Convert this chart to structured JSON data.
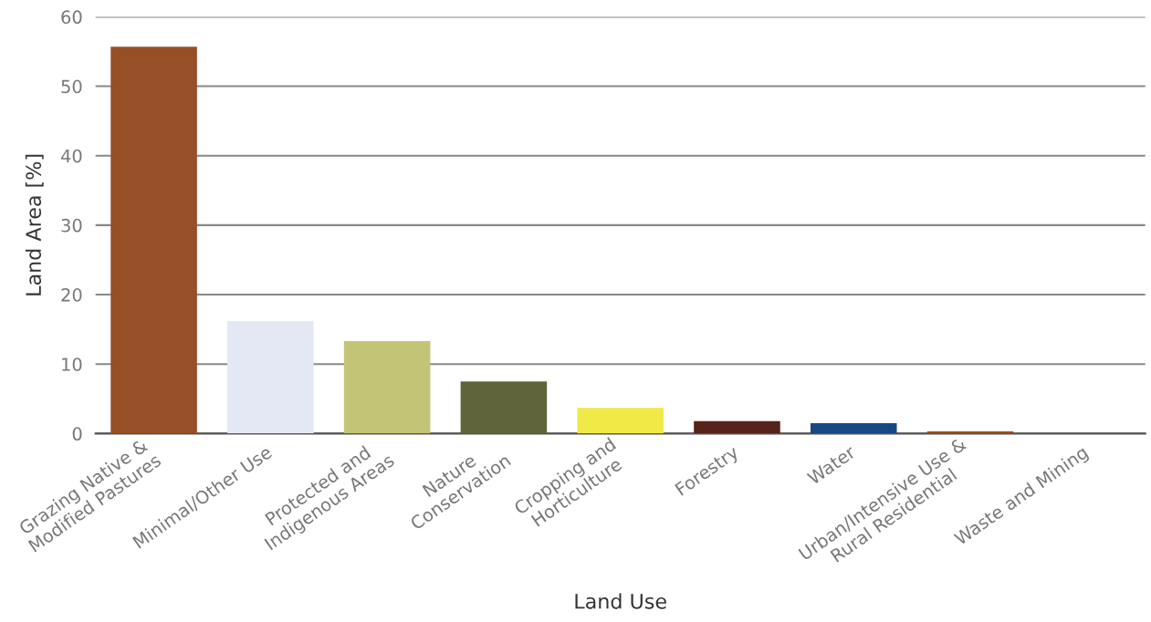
{
  "chart_data": {
    "type": "bar",
    "xlabel": "Land Use",
    "ylabel": "Land Area [%]",
    "categories": [
      "Grazing Native &\nModified Pastures",
      "Minimal/Other Use",
      "Protected and\nIndigenous Areas",
      "Nature\nConservation",
      "Cropping and\nHorticulture",
      "Forestry",
      "Water",
      "Urban/Intensive Use &\nRural Residential",
      "Waste and Mining"
    ],
    "values": [
      55.7,
      16.2,
      13.3,
      7.5,
      3.7,
      1.8,
      1.5,
      0.3,
      0
    ],
    "colors": [
      "#964f26",
      "#e4e8f5",
      "#c3c476",
      "#5f643b",
      "#f0e946",
      "#55231a",
      "#164886",
      "#964f26",
      "#964f26"
    ],
    "ylim": [
      0,
      60
    ],
    "yticks": [
      0,
      10,
      20,
      30,
      40,
      50,
      60
    ],
    "grid": "y"
  }
}
